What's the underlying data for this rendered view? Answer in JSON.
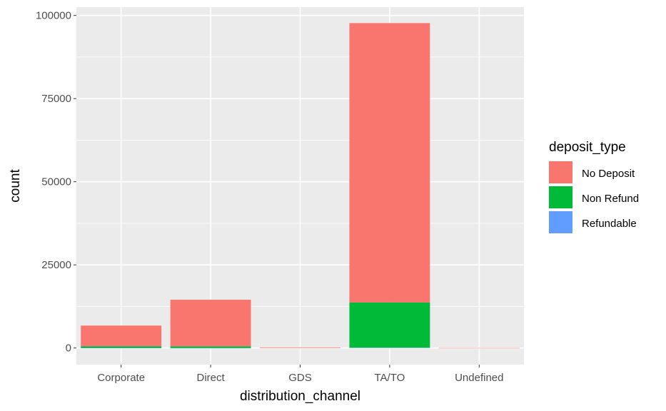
{
  "chart_data": {
    "type": "bar",
    "stacked": true,
    "xlabel": "distribution_channel",
    "ylabel": "count",
    "categories": [
      "Corporate",
      "Direct",
      "GDS",
      "TA/TO",
      "Undefined"
    ],
    "series": [
      {
        "name": "No Deposit",
        "color": "#F8766D",
        "values": [
          6200,
          14000,
          180,
          84000,
          5
        ]
      },
      {
        "name": "Non Refund",
        "color": "#00BA38",
        "values": [
          500,
          500,
          0,
          13600,
          0
        ]
      },
      {
        "name": "Refundable",
        "color": "#619CFF",
        "values": [
          40,
          10,
          0,
          100,
          0
        ]
      }
    ],
    "ylim": [
      -5000,
      102500
    ],
    "yticks": [
      0,
      25000,
      50000,
      75000,
      100000
    ],
    "ytick_labels": [
      "0",
      "25000",
      "50000",
      "75000",
      "100000"
    ],
    "grid": true,
    "panel_background": "#EBEBEB",
    "legend": {
      "title": "deposit_type",
      "position": "right"
    }
  }
}
